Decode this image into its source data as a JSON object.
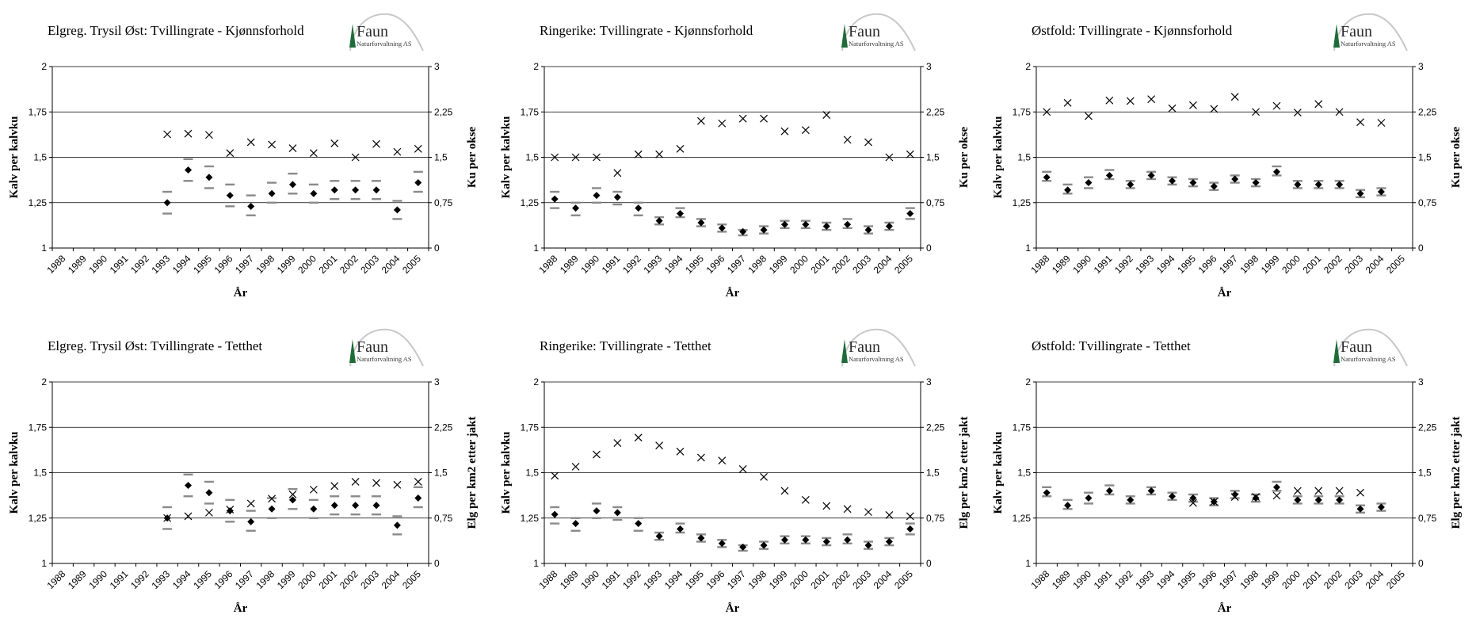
{
  "logo": {
    "name": "Faun",
    "subtitle": "Naturforvaltning AS"
  },
  "chart_data": [
    {
      "type": "scatter",
      "title": "Elgreg. Trysil Øst: Tvillingrate - Kjønnsforhold",
      "xlabel": "År",
      "ylabel": "Kalv per kalvku",
      "y2label": "Ku per okse",
      "categories": [
        "1988",
        "1989",
        "1990",
        "1991",
        "1992",
        "1993",
        "1994",
        "1995",
        "1996",
        "1997",
        "1998",
        "1999",
        "2000",
        "2001",
        "2002",
        "2003",
        "2004",
        "2005"
      ],
      "yticks": [
        "1",
        "1,25",
        "1,5",
        "1,75",
        "2"
      ],
      "y2ticks": [
        "0",
        "0,75",
        "1,5",
        "2,25",
        "3"
      ],
      "ylim": [
        1,
        2
      ],
      "y2lim": [
        0,
        3
      ],
      "series": [
        {
          "role": "twin",
          "values": [
            null,
            null,
            null,
            null,
            null,
            1.25,
            1.43,
            1.39,
            1.29,
            1.23,
            1.3,
            1.35,
            1.3,
            1.32,
            1.32,
            1.32,
            1.21,
            1.36
          ]
        },
        {
          "role": "ratio",
          "values": [
            null,
            null,
            null,
            null,
            null,
            1.88,
            1.89,
            1.87,
            1.57,
            1.75,
            1.71,
            1.65,
            1.57,
            1.73,
            1.5,
            1.72,
            1.59,
            1.64
          ]
        }
      ],
      "error_upper": [
        null,
        null,
        null,
        null,
        null,
        1.31,
        1.49,
        1.45,
        1.35,
        1.29,
        1.36,
        1.41,
        1.35,
        1.37,
        1.37,
        1.37,
        1.26,
        1.42
      ],
      "error_lower": [
        null,
        null,
        null,
        null,
        null,
        1.19,
        1.37,
        1.33,
        1.23,
        1.18,
        1.25,
        1.3,
        1.25,
        1.27,
        1.27,
        1.27,
        1.16,
        1.31
      ],
      "grid": "horizontal"
    },
    {
      "type": "scatter",
      "title": "Ringerike: Tvillingrate - Kjønnsforhold",
      "xlabel": "År",
      "ylabel": "Kalv per kalvku",
      "y2label": "Ku per okse",
      "categories": [
        "1988",
        "1989",
        "1990",
        "1991",
        "1992",
        "1993",
        "1994",
        "1995",
        "1996",
        "1997",
        "1998",
        "1999",
        "2000",
        "2001",
        "2002",
        "2003",
        "2004",
        "2005"
      ],
      "yticks": [
        "1",
        "1,25",
        "1,5",
        "1,75",
        "2"
      ],
      "y2ticks": [
        "0",
        "0,75",
        "1,5",
        "2,25",
        "3"
      ],
      "ylim": [
        1,
        2
      ],
      "y2lim": [
        0,
        3
      ],
      "series": [
        {
          "role": "twin",
          "values": [
            1.27,
            1.22,
            1.29,
            1.28,
            1.22,
            1.15,
            1.19,
            1.14,
            1.11,
            1.09,
            1.1,
            1.13,
            1.13,
            1.12,
            1.13,
            1.1,
            1.12,
            1.19
          ]
        },
        {
          "role": "ratio",
          "values": [
            1.5,
            1.5,
            1.5,
            1.24,
            1.55,
            1.55,
            1.64,
            2.1,
            2.06,
            2.14,
            2.14,
            1.93,
            1.95,
            2.2,
            1.79,
            1.75,
            1.5,
            1.55
          ]
        }
      ],
      "error_upper": [
        1.31,
        1.25,
        1.33,
        1.31,
        1.25,
        1.17,
        1.22,
        1.16,
        1.13,
        1.1,
        1.12,
        1.15,
        1.15,
        1.14,
        1.16,
        1.12,
        1.14,
        1.22
      ],
      "error_lower": [
        1.22,
        1.18,
        1.25,
        1.24,
        1.18,
        1.13,
        1.17,
        1.12,
        1.09,
        1.07,
        1.08,
        1.11,
        1.11,
        1.1,
        1.11,
        1.08,
        1.1,
        1.16
      ],
      "grid": "horizontal"
    },
    {
      "type": "scatter",
      "title": "Østfold: Tvillingrate - Kjønnsforhold",
      "xlabel": "År",
      "ylabel": "Kalv per kalvku",
      "y2label": "Ku per okse",
      "categories": [
        "1988",
        "1989",
        "1990",
        "1991",
        "1992",
        "1993",
        "1994",
        "1995",
        "1996",
        "1997",
        "1998",
        "1999",
        "2000",
        "2001",
        "2002",
        "2003",
        "2004",
        "2005"
      ],
      "yticks": [
        "1",
        "1,25",
        "1,5",
        "1,75",
        "2"
      ],
      "y2ticks": [
        "0",
        "0,75",
        "1,5",
        "2,25",
        "3"
      ],
      "ylim": [
        1,
        2
      ],
      "y2lim": [
        0,
        3
      ],
      "series": [
        {
          "role": "twin",
          "values": [
            1.39,
            1.32,
            1.36,
            1.4,
            1.35,
            1.4,
            1.37,
            1.36,
            1.34,
            1.38,
            1.36,
            1.42,
            1.35,
            1.35,
            1.35,
            1.3,
            1.31,
            null
          ]
        },
        {
          "role": "ratio",
          "values": [
            2.25,
            2.4,
            2.18,
            2.44,
            2.43,
            2.46,
            2.31,
            2.36,
            2.3,
            2.5,
            2.25,
            2.35,
            2.24,
            2.38,
            2.25,
            2.08,
            2.07,
            null
          ]
        }
      ],
      "error_upper": [
        1.42,
        1.35,
        1.39,
        1.43,
        1.37,
        1.42,
        1.39,
        1.38,
        1.36,
        1.4,
        1.38,
        1.45,
        1.37,
        1.37,
        1.37,
        1.32,
        1.33,
        null
      ],
      "error_lower": [
        1.37,
        1.3,
        1.33,
        1.38,
        1.33,
        1.38,
        1.35,
        1.34,
        1.32,
        1.36,
        1.34,
        1.4,
        1.33,
        1.33,
        1.33,
        1.28,
        1.29,
        null
      ],
      "grid": "horizontal"
    },
    {
      "type": "scatter",
      "title": "Elgreg. Trysil Øst: Tvillingrate - Tetthet",
      "xlabel": "År",
      "ylabel": "Kalv per kalvku",
      "y2label": "Elg per km2 etter jakt",
      "categories": [
        "1988",
        "1989",
        "1990",
        "1991",
        "1992",
        "1993",
        "1994",
        "1995",
        "1996",
        "1997",
        "1998",
        "1999",
        "2000",
        "2001",
        "2002",
        "2003",
        "2004",
        "2005"
      ],
      "yticks": [
        "1",
        "1,25",
        "1,5",
        "1,75",
        "2"
      ],
      "y2ticks": [
        "0",
        "0,75",
        "1,5",
        "2,25",
        "3"
      ],
      "ylim": [
        1,
        2
      ],
      "y2lim": [
        0,
        3
      ],
      "series": [
        {
          "role": "twin",
          "values": [
            null,
            null,
            null,
            null,
            null,
            1.25,
            1.43,
            1.39,
            1.29,
            1.23,
            1.3,
            1.35,
            1.3,
            1.32,
            1.32,
            1.32,
            1.21,
            1.36
          ]
        },
        {
          "role": "density",
          "values": [
            null,
            null,
            null,
            null,
            null,
            0.75,
            0.78,
            0.84,
            0.89,
            0.99,
            1.07,
            1.14,
            1.22,
            1.28,
            1.35,
            1.33,
            1.3,
            1.35
          ]
        }
      ],
      "error_upper": [
        null,
        null,
        null,
        null,
        null,
        1.31,
        1.49,
        1.45,
        1.35,
        1.29,
        1.36,
        1.41,
        1.35,
        1.37,
        1.37,
        1.37,
        1.26,
        1.42
      ],
      "error_lower": [
        null,
        null,
        null,
        null,
        null,
        1.19,
        1.37,
        1.33,
        1.23,
        1.18,
        1.25,
        1.3,
        1.25,
        1.27,
        1.27,
        1.27,
        1.16,
        1.31
      ],
      "grid": "horizontal"
    },
    {
      "type": "scatter",
      "title": "Ringerike: Tvillingrate - Tetthet",
      "xlabel": "År",
      "ylabel": "Kalv per kalvku",
      "y2label": "Elg per km2 etter jakt",
      "categories": [
        "1988",
        "1989",
        "1990",
        "1991",
        "1992",
        "1993",
        "1994",
        "1995",
        "1996",
        "1997",
        "1998",
        "1999",
        "2000",
        "2001",
        "2002",
        "2003",
        "2004",
        "2005"
      ],
      "yticks": [
        "1",
        "1,25",
        "1,5",
        "1,75",
        "2"
      ],
      "y2ticks": [
        "0",
        "0,75",
        "1,5",
        "2,25",
        "3"
      ],
      "ylim": [
        1,
        2
      ],
      "y2lim": [
        0,
        3
      ],
      "series": [
        {
          "role": "twin",
          "values": [
            1.27,
            1.22,
            1.29,
            1.28,
            1.22,
            1.15,
            1.19,
            1.14,
            1.11,
            1.09,
            1.1,
            1.13,
            1.13,
            1.12,
            1.13,
            1.1,
            1.12,
            1.19
          ]
        },
        {
          "role": "density",
          "values": [
            1.45,
            1.6,
            1.8,
            1.99,
            2.08,
            1.95,
            1.85,
            1.75,
            1.7,
            1.56,
            1.43,
            1.2,
            1.05,
            0.95,
            0.9,
            0.85,
            0.8,
            0.78
          ]
        }
      ],
      "error_upper": [
        1.31,
        1.25,
        1.33,
        1.31,
        1.25,
        1.17,
        1.22,
        1.16,
        1.13,
        1.1,
        1.12,
        1.15,
        1.15,
        1.14,
        1.16,
        1.12,
        1.14,
        1.22
      ],
      "error_lower": [
        1.22,
        1.18,
        1.25,
        1.24,
        1.18,
        1.13,
        1.17,
        1.12,
        1.09,
        1.07,
        1.08,
        1.11,
        1.11,
        1.1,
        1.11,
        1.08,
        1.1,
        1.16
      ],
      "grid": "horizontal"
    },
    {
      "type": "scatter",
      "title": "Østfold: Tvillingrate - Tetthet",
      "xlabel": "År",
      "ylabel": "Kalv per kalvku",
      "y2label": "Elg per km2 etter jakt",
      "categories": [
        "1988",
        "1989",
        "1990",
        "1991",
        "1992",
        "1993",
        "1994",
        "1995",
        "1996",
        "1997",
        "1998",
        "1999",
        "2000",
        "2001",
        "2002",
        "2003",
        "2004",
        "2005"
      ],
      "yticks": [
        "1",
        "1,25",
        "1,5",
        "1,75",
        "2"
      ],
      "y2ticks": [
        "0",
        "0,75",
        "1,5",
        "2,25",
        "3"
      ],
      "ylim": [
        1,
        2
      ],
      "y2lim": [
        0,
        3
      ],
      "series": [
        {
          "role": "twin",
          "values": [
            1.39,
            1.32,
            1.36,
            1.4,
            1.35,
            1.4,
            1.37,
            1.36,
            1.34,
            1.38,
            1.36,
            1.42,
            1.35,
            1.35,
            1.35,
            1.3,
            1.31,
            null
          ]
        },
        {
          "role": "density",
          "values": [
            null,
            null,
            null,
            null,
            null,
            null,
            null,
            1.0,
            1.02,
            1.1,
            1.1,
            1.12,
            1.2,
            1.2,
            1.2,
            1.17,
            null,
            null
          ]
        }
      ],
      "error_upper": [
        1.42,
        1.35,
        1.39,
        1.43,
        1.37,
        1.42,
        1.39,
        1.38,
        1.36,
        1.4,
        1.38,
        1.45,
        1.37,
        1.37,
        1.37,
        1.32,
        1.33,
        null
      ],
      "error_lower": [
        1.37,
        1.3,
        1.33,
        1.38,
        1.33,
        1.38,
        1.35,
        1.34,
        1.32,
        1.36,
        1.34,
        1.4,
        1.33,
        1.33,
        1.33,
        1.28,
        1.29,
        null
      ],
      "grid": "horizontal"
    }
  ]
}
